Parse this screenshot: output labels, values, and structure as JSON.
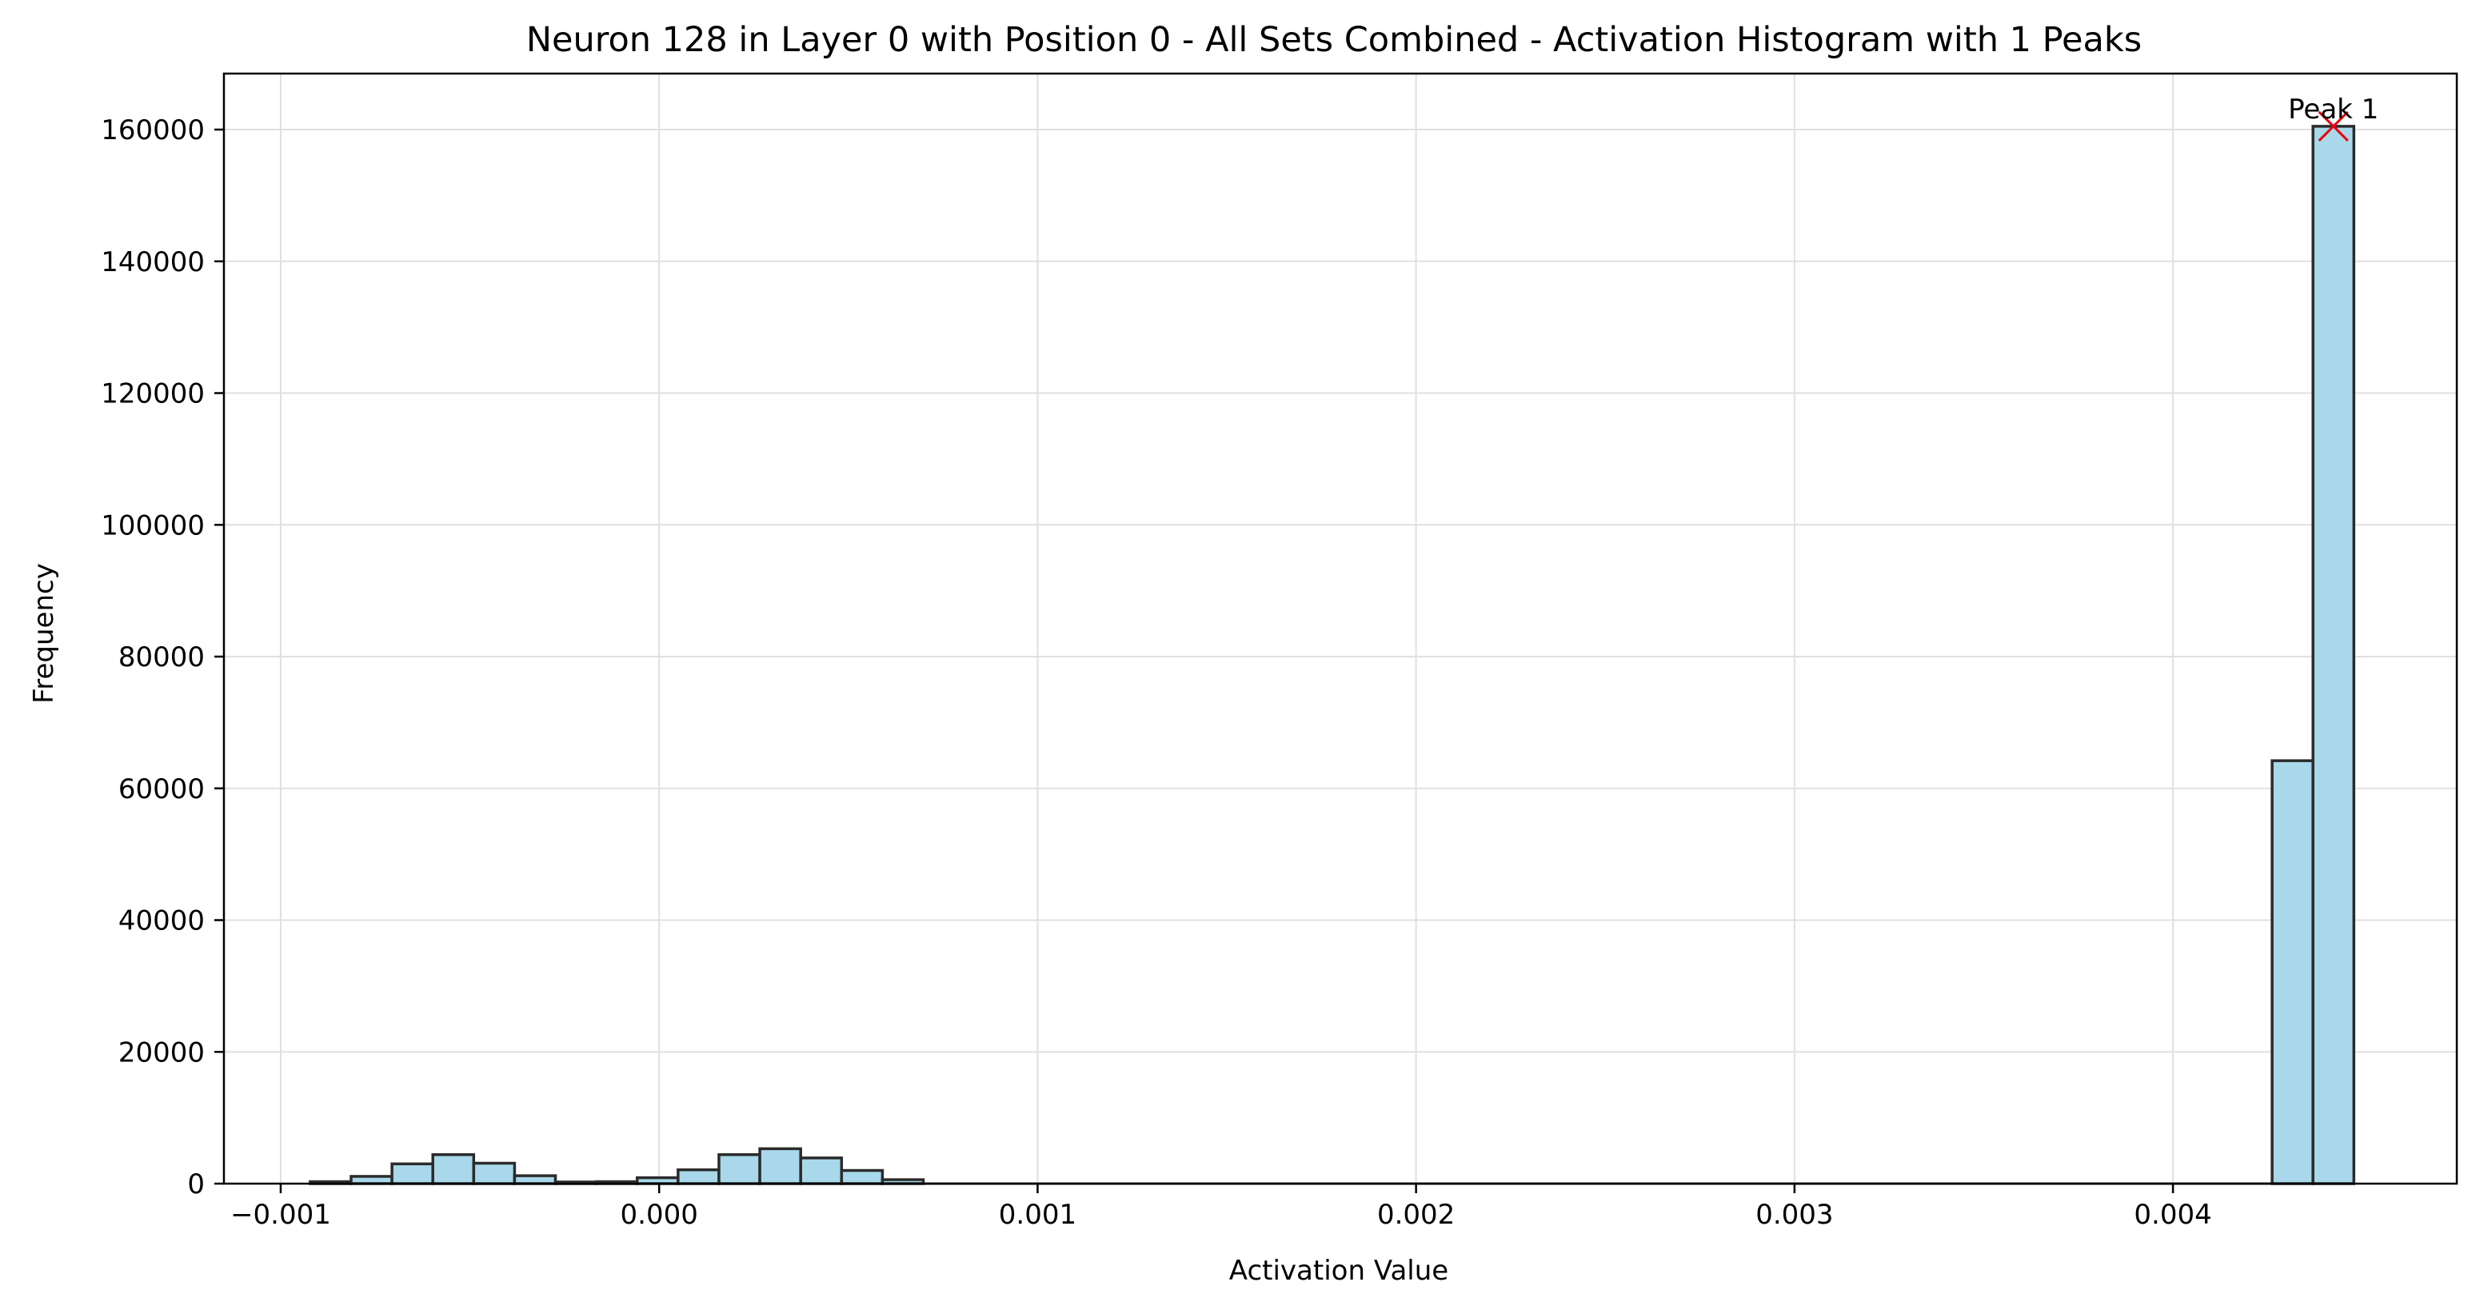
{
  "chart_data": {
    "type": "bar",
    "title": "Neuron 128 in Layer 0 with Position 0 - All Sets Combined - Activation Histogram with 1 Peaks",
    "xlabel": "Activation Value",
    "ylabel": "Frequency",
    "xlim": [
      -0.00115,
      0.00475
    ],
    "ylim": [
      0,
      168500
    ],
    "x_ticks": [
      -0.001,
      0.0,
      0.001,
      0.002,
      0.003,
      0.004
    ],
    "x_tick_labels": [
      "−0.001",
      "0.000",
      "0.001",
      "0.002",
      "0.003",
      "0.004"
    ],
    "y_ticks": [
      0,
      20000,
      40000,
      60000,
      80000,
      100000,
      120000,
      140000,
      160000
    ],
    "y_tick_labels": [
      "0",
      "20000",
      "40000",
      "60000",
      "80000",
      "100000",
      "120000",
      "140000",
      "160000"
    ],
    "grid": true,
    "bin_width": 0.000108,
    "bin_start": -0.000922,
    "bins": [
      {
        "x0": -0.000922,
        "count": 300
      },
      {
        "x0": -0.000814,
        "count": 1100
      },
      {
        "x0": -0.000706,
        "count": 3000
      },
      {
        "x0": -0.000598,
        "count": 4400
      },
      {
        "x0": -0.00049,
        "count": 3100
      },
      {
        "x0": -0.000382,
        "count": 1200
      },
      {
        "x0": -0.000274,
        "count": 250
      },
      {
        "x0": -0.000166,
        "count": 300
      },
      {
        "x0": -5.8e-05,
        "count": 900
      },
      {
        "x0": 5e-05,
        "count": 2100
      },
      {
        "x0": 0.000158,
        "count": 4400
      },
      {
        "x0": 0.000266,
        "count": 5300
      },
      {
        "x0": 0.000374,
        "count": 3900
      },
      {
        "x0": 0.000482,
        "count": 2000
      },
      {
        "x0": 0.00059,
        "count": 600
      },
      {
        "x0": 0.004262,
        "count": 64200
      },
      {
        "x0": 0.00437,
        "count": 160500
      }
    ],
    "bar_fill": "#a8d8ea",
    "bar_edge": "#2b2b2b",
    "grid_color": "#e0e0e0",
    "peaks": [
      {
        "x": 0.004424,
        "y": 160500,
        "label": "Peak 1",
        "marker_color": "#e8000b"
      }
    ]
  }
}
